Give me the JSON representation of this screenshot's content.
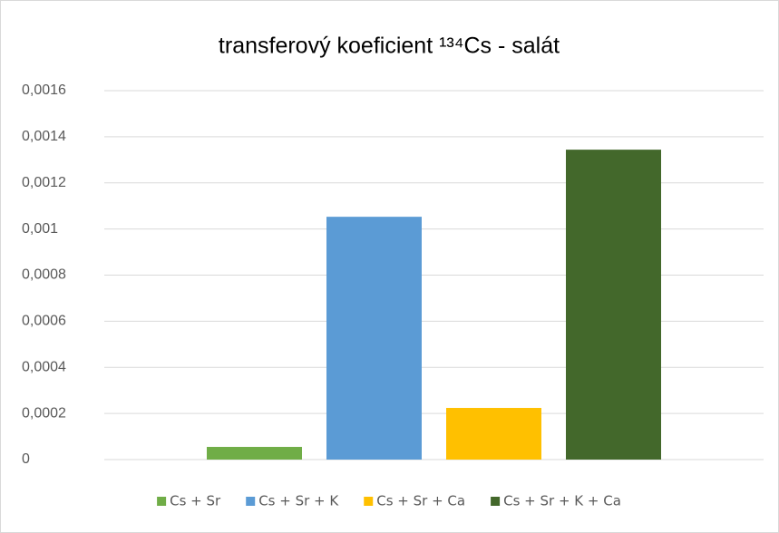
{
  "chart_data": {
    "type": "bar",
    "title": "transferový koeficient ¹³⁴Cs - salát",
    "categories": [
      null
    ],
    "series": [
      {
        "name": "Cs + Sr",
        "color": "#70ad47",
        "values": [
          5.5e-05
        ]
      },
      {
        "name": "Cs + Sr + K",
        "color": "#5b9bd5",
        "values": [
          0.001053
        ]
      },
      {
        "name": "Cs + Sr + Ca",
        "color": "#ffc000",
        "values": [
          0.000224
        ]
      },
      {
        "name": "Cs + Sr + K + Ca",
        "color": "#43682b",
        "values": [
          0.001344
        ]
      }
    ],
    "ylim": [
      0,
      0.0016
    ],
    "yticks": [
      0,
      {
        "value": 0.0002,
        "label": "0,0002"
      },
      {
        "value": 0.0004,
        "label": "0,0004"
      },
      {
        "value": 0.0006,
        "label": "0,0006"
      },
      {
        "value": 0.0008,
        "label": "0,0008"
      },
      {
        "value": 0.001,
        "label": "0,001"
      },
      {
        "value": 0.0012,
        "label": "0,0012"
      },
      {
        "value": 0.0014,
        "label": "0,0014"
      },
      {
        "value": 0.0016,
        "label": "0,0016"
      }
    ],
    "grid": true,
    "legend": "bottom"
  }
}
